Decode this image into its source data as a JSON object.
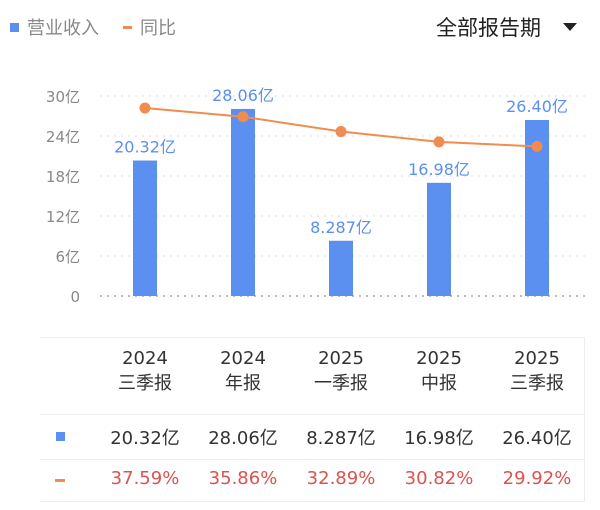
{
  "legend": {
    "revenue": "营业收入",
    "yoy": "同比"
  },
  "period_selector": {
    "label": "全部报告期",
    "icon": "triangle-down-icon"
  },
  "colors": {
    "bar": "#5b8ff0",
    "line": "#f08c4f",
    "pct_text": "#d9534f"
  },
  "chart_data": {
    "type": "bar",
    "categories": [
      "2024 三季报",
      "2024 年报",
      "2025 一季报",
      "2025 中报",
      "2025 三季报"
    ],
    "series": [
      {
        "name": "营业收入",
        "type": "bar",
        "values": [
          20.32,
          28.06,
          8.287,
          16.98,
          26.4
        ],
        "labels": [
          "20.32亿",
          "28.06亿",
          "8.287亿",
          "16.98亿",
          "26.40亿"
        ]
      },
      {
        "name": "同比",
        "type": "line",
        "values": [
          37.59,
          35.86,
          32.89,
          30.82,
          29.92
        ],
        "unit": "%"
      }
    ],
    "yaxis": {
      "ticks": [
        "0",
        "6亿",
        "12亿",
        "18亿",
        "24亿",
        "30亿"
      ],
      "ylim": [
        0,
        30
      ]
    },
    "y2lim": [
      0,
      40
    ],
    "grid": true,
    "legend": "top-left"
  },
  "table": {
    "headers": [
      [
        "2024",
        "三季报"
      ],
      [
        "2024",
        "年报"
      ],
      [
        "2025",
        "一季报"
      ],
      [
        "2025",
        "中报"
      ],
      [
        "2025",
        "三季报"
      ]
    ],
    "revenue": [
      "20.32亿",
      "28.06亿",
      "8.287亿",
      "16.98亿",
      "26.40亿"
    ],
    "yoy": [
      "37.59%",
      "35.86%",
      "32.89%",
      "30.82%",
      "29.92%"
    ]
  }
}
